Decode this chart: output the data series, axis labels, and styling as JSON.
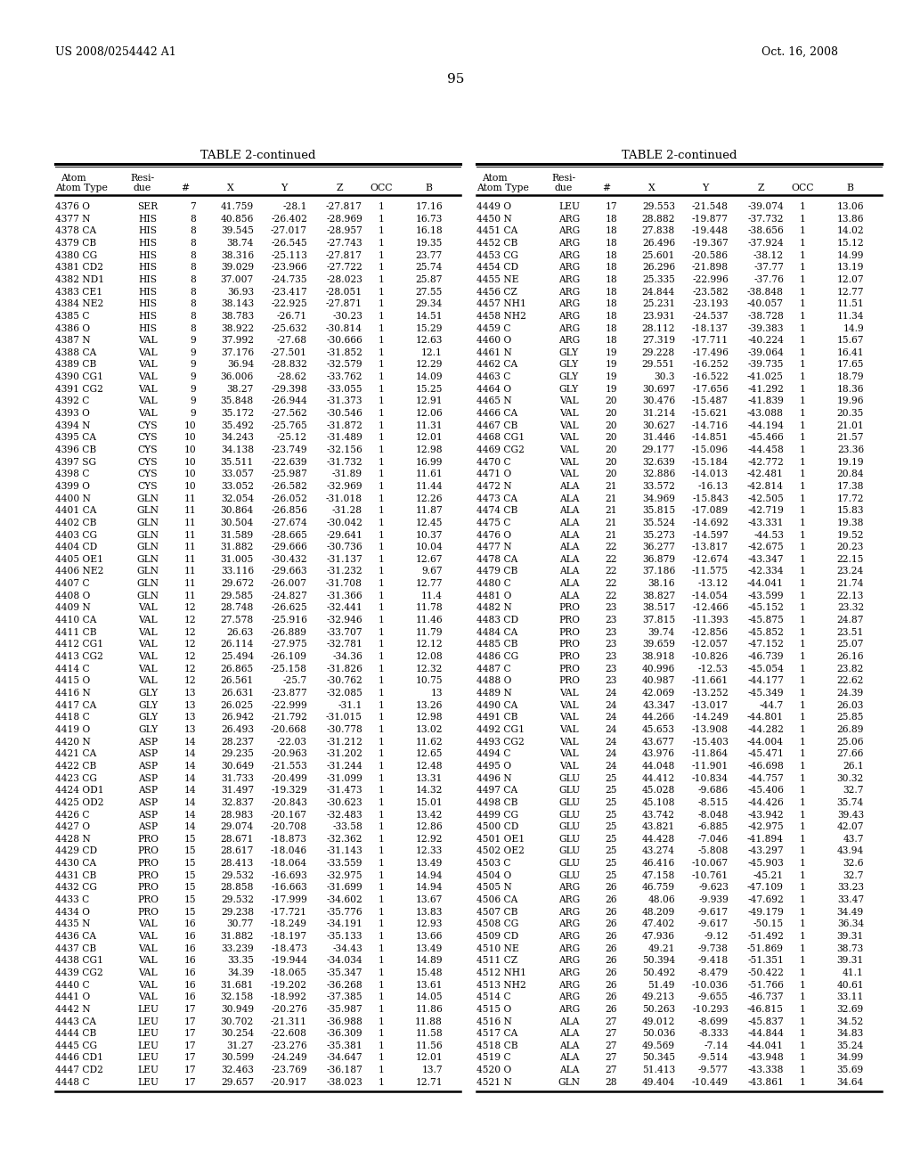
{
  "patent_number": "US 2008/0254442 A1",
  "date": "Oct. 16, 2008",
  "page_number": "95",
  "table_title": "TABLE 2-continued",
  "left_table_data": [
    [
      "4376 O",
      "SER",
      "7",
      "41.759",
      "-28.1",
      "-27.817",
      "1",
      "17.16"
    ],
    [
      "4377 N",
      "HIS",
      "8",
      "40.856",
      "-26.402",
      "-28.969",
      "1",
      "16.73"
    ],
    [
      "4378 CA",
      "HIS",
      "8",
      "39.545",
      "-27.017",
      "-28.957",
      "1",
      "16.18"
    ],
    [
      "4379 CB",
      "HIS",
      "8",
      "38.74",
      "-26.545",
      "-27.743",
      "1",
      "19.35"
    ],
    [
      "4380 CG",
      "HIS",
      "8",
      "38.316",
      "-25.113",
      "-27.817",
      "1",
      "23.77"
    ],
    [
      "4381 CD2",
      "HIS",
      "8",
      "39.029",
      "-23.966",
      "-27.722",
      "1",
      "25.74"
    ],
    [
      "4382 ND1",
      "HIS",
      "8",
      "37.007",
      "-24.735",
      "-28.023",
      "1",
      "25.87"
    ],
    [
      "4383 CE1",
      "HIS",
      "8",
      "36.93",
      "-23.417",
      "-28.051",
      "1",
      "27.55"
    ],
    [
      "4384 NE2",
      "HIS",
      "8",
      "38.143",
      "-22.925",
      "-27.871",
      "1",
      "29.34"
    ],
    [
      "4385 C",
      "HIS",
      "8",
      "38.783",
      "-26.71",
      "-30.23",
      "1",
      "14.51"
    ],
    [
      "4386 O",
      "HIS",
      "8",
      "38.922",
      "-25.632",
      "-30.814",
      "1",
      "15.29"
    ],
    [
      "4387 N",
      "VAL",
      "9",
      "37.992",
      "-27.68",
      "-30.666",
      "1",
      "12.63"
    ],
    [
      "4388 CA",
      "VAL",
      "9",
      "37.176",
      "-27.501",
      "-31.852",
      "1",
      "12.1"
    ],
    [
      "4389 CB",
      "VAL",
      "9",
      "36.94",
      "-28.832",
      "-32.579",
      "1",
      "12.29"
    ],
    [
      "4390 CG1",
      "VAL",
      "9",
      "36.006",
      "-28.62",
      "-33.762",
      "1",
      "14.09"
    ],
    [
      "4391 CG2",
      "VAL",
      "9",
      "38.27",
      "-29.398",
      "-33.055",
      "1",
      "15.25"
    ],
    [
      "4392 C",
      "VAL",
      "9",
      "35.848",
      "-26.944",
      "-31.373",
      "1",
      "12.91"
    ],
    [
      "4393 O",
      "VAL",
      "9",
      "35.172",
      "-27.562",
      "-30.546",
      "1",
      "12.06"
    ],
    [
      "4394 N",
      "CYS",
      "10",
      "35.492",
      "-25.765",
      "-31.872",
      "1",
      "11.31"
    ],
    [
      "4395 CA",
      "CYS",
      "10",
      "34.243",
      "-25.12",
      "-31.489",
      "1",
      "12.01"
    ],
    [
      "4396 CB",
      "CYS",
      "10",
      "34.138",
      "-23.749",
      "-32.156",
      "1",
      "12.98"
    ],
    [
      "4397 SG",
      "CYS",
      "10",
      "35.511",
      "-22.639",
      "-31.732",
      "1",
      "16.99"
    ],
    [
      "4398 C",
      "CYS",
      "10",
      "33.057",
      "-25.987",
      "-31.89",
      "1",
      "11.61"
    ],
    [
      "4399 O",
      "CYS",
      "10",
      "33.052",
      "-26.582",
      "-32.969",
      "1",
      "11.44"
    ],
    [
      "4400 N",
      "GLN",
      "11",
      "32.054",
      "-26.052",
      "-31.018",
      "1",
      "12.26"
    ],
    [
      "4401 CA",
      "GLN",
      "11",
      "30.864",
      "-26.856",
      "-31.28",
      "1",
      "11.87"
    ],
    [
      "4402 CB",
      "GLN",
      "11",
      "30.504",
      "-27.674",
      "-30.042",
      "1",
      "12.45"
    ],
    [
      "4403 CG",
      "GLN",
      "11",
      "31.589",
      "-28.665",
      "-29.641",
      "1",
      "10.37"
    ],
    [
      "4404 CD",
      "GLN",
      "11",
      "31.882",
      "-29.666",
      "-30.736",
      "1",
      "10.04"
    ],
    [
      "4405 OE1",
      "GLN",
      "11",
      "31.005",
      "-30.432",
      "-31.137",
      "1",
      "12.67"
    ],
    [
      "4406 NE2",
      "GLN",
      "11",
      "33.116",
      "-29.663",
      "-31.232",
      "1",
      "9.67"
    ],
    [
      "4407 C",
      "GLN",
      "11",
      "29.672",
      "-26.007",
      "-31.708",
      "1",
      "12.77"
    ],
    [
      "4408 O",
      "GLN",
      "11",
      "29.585",
      "-24.827",
      "-31.366",
      "1",
      "11.4"
    ],
    [
      "4409 N",
      "VAL",
      "12",
      "28.748",
      "-26.625",
      "-32.441",
      "1",
      "11.78"
    ],
    [
      "4410 CA",
      "VAL",
      "12",
      "27.578",
      "-25.916",
      "-32.946",
      "1",
      "11.46"
    ],
    [
      "4411 CB",
      "VAL",
      "12",
      "26.63",
      "-26.889",
      "-33.707",
      "1",
      "11.79"
    ],
    [
      "4412 CG1",
      "VAL",
      "12",
      "26.114",
      "-27.975",
      "-32.781",
      "1",
      "12.12"
    ],
    [
      "4413 CG2",
      "VAL",
      "12",
      "25.494",
      "-26.109",
      "-34.36",
      "1",
      "12.08"
    ],
    [
      "4414 C",
      "VAL",
      "12",
      "26.865",
      "-25.158",
      "-31.826",
      "1",
      "12.32"
    ],
    [
      "4415 O",
      "VAL",
      "12",
      "26.561",
      "-25.7",
      "-30.762",
      "1",
      "10.75"
    ],
    [
      "4416 N",
      "GLY",
      "13",
      "26.631",
      "-23.877",
      "-32.085",
      "1",
      "13"
    ],
    [
      "4417 CA",
      "GLY",
      "13",
      "26.025",
      "-22.999",
      "-31.1",
      "1",
      "13.26"
    ],
    [
      "4418 C",
      "GLY",
      "13",
      "26.942",
      "-21.792",
      "-31.015",
      "1",
      "12.98"
    ],
    [
      "4419 O",
      "GLY",
      "13",
      "26.493",
      "-20.668",
      "-30.778",
      "1",
      "13.02"
    ],
    [
      "4420 N",
      "ASP",
      "14",
      "28.237",
      "-22.03",
      "-31.212",
      "1",
      "11.62"
    ],
    [
      "4421 CA",
      "ASP",
      "14",
      "29.235",
      "-20.963",
      "-31.202",
      "1",
      "12.65"
    ],
    [
      "4422 CB",
      "ASP",
      "14",
      "30.649",
      "-21.553",
      "-31.244",
      "1",
      "12.48"
    ],
    [
      "4423 CG",
      "ASP",
      "14",
      "31.733",
      "-20.499",
      "-31.099",
      "1",
      "13.31"
    ],
    [
      "4424 OD1",
      "ASP",
      "14",
      "31.497",
      "-19.329",
      "-31.473",
      "1",
      "14.32"
    ],
    [
      "4425 OD2",
      "ASP",
      "14",
      "32.837",
      "-20.843",
      "-30.623",
      "1",
      "15.01"
    ],
    [
      "4426 C",
      "ASP",
      "14",
      "28.983",
      "-20.167",
      "-32.483",
      "1",
      "13.42"
    ],
    [
      "4427 O",
      "ASP",
      "14",
      "29.074",
      "-20.708",
      "-33.58",
      "1",
      "12.86"
    ],
    [
      "4428 N",
      "PRO",
      "15",
      "28.671",
      "-18.873",
      "-32.362",
      "1",
      "12.92"
    ],
    [
      "4429 CD",
      "PRO",
      "15",
      "28.617",
      "-18.046",
      "-31.143",
      "1",
      "12.33"
    ],
    [
      "4430 CA",
      "PRO",
      "15",
      "28.413",
      "-18.064",
      "-33.559",
      "1",
      "13.49"
    ],
    [
      "4431 CB",
      "PRO",
      "15",
      "29.532",
      "-16.693",
      "-32.975",
      "1",
      "14.94"
    ],
    [
      "4432 CG",
      "PRO",
      "15",
      "28.858",
      "-16.663",
      "-31.699",
      "1",
      "14.94"
    ],
    [
      "4433 C",
      "PRO",
      "15",
      "29.532",
      "-17.999",
      "-34.602",
      "1",
      "13.67"
    ],
    [
      "4434 O",
      "PRO",
      "15",
      "29.238",
      "-17.721",
      "-35.776",
      "1",
      "13.83"
    ],
    [
      "4435 N",
      "VAL",
      "16",
      "30.77",
      "-18.249",
      "-34.191",
      "1",
      "12.93"
    ],
    [
      "4436 CA",
      "VAL",
      "16",
      "31.882",
      "-18.197",
      "-35.133",
      "1",
      "13.66"
    ],
    [
      "4437 CB",
      "VAL",
      "16",
      "33.239",
      "-18.473",
      "-34.43",
      "1",
      "13.49"
    ],
    [
      "4438 CG1",
      "VAL",
      "16",
      "33.35",
      "-19.944",
      "-34.034",
      "1",
      "14.89"
    ],
    [
      "4439 CG2",
      "VAL",
      "16",
      "34.39",
      "-18.065",
      "-35.347",
      "1",
      "15.48"
    ],
    [
      "4440 C",
      "VAL",
      "16",
      "31.681",
      "-19.202",
      "-36.268",
      "1",
      "13.61"
    ],
    [
      "4441 O",
      "VAL",
      "16",
      "32.158",
      "-18.992",
      "-37.385",
      "1",
      "14.05"
    ],
    [
      "4442 N",
      "LEU",
      "17",
      "30.949",
      "-20.276",
      "-35.987",
      "1",
      "11.86"
    ],
    [
      "4443 CA",
      "LEU",
      "17",
      "30.702",
      "-21.311",
      "-36.988",
      "1",
      "11.88"
    ],
    [
      "4444 CB",
      "LEU",
      "17",
      "30.254",
      "-22.608",
      "-36.309",
      "1",
      "11.58"
    ],
    [
      "4445 CG",
      "LEU",
      "17",
      "31.27",
      "-23.276",
      "-35.381",
      "1",
      "11.56"
    ],
    [
      "4446 CD1",
      "LEU",
      "17",
      "30.599",
      "-24.249",
      "-34.647",
      "1",
      "12.01"
    ],
    [
      "4447 CD2",
      "LEU",
      "17",
      "32.463",
      "-23.769",
      "-36.187",
      "1",
      "13.7"
    ],
    [
      "4448 C",
      "LEU",
      "17",
      "29.657",
      "-20.917",
      "-38.023",
      "1",
      "12.71"
    ]
  ],
  "right_table_data": [
    [
      "4449 O",
      "LEU",
      "17",
      "29.553",
      "-21.548",
      "-39.074",
      "1",
      "13.06"
    ],
    [
      "4450 N",
      "ARG",
      "18",
      "28.882",
      "-19.877",
      "-37.732",
      "1",
      "13.86"
    ],
    [
      "4451 CA",
      "ARG",
      "18",
      "27.838",
      "-19.448",
      "-38.656",
      "1",
      "14.02"
    ],
    [
      "4452 CB",
      "ARG",
      "18",
      "26.496",
      "-19.367",
      "-37.924",
      "1",
      "15.12"
    ],
    [
      "4453 CG",
      "ARG",
      "18",
      "25.601",
      "-20.586",
      "-38.12",
      "1",
      "14.99"
    ],
    [
      "4454 CD",
      "ARG",
      "18",
      "26.296",
      "-21.898",
      "-37.77",
      "1",
      "13.19"
    ],
    [
      "4455 NE",
      "ARG",
      "18",
      "25.335",
      "-22.996",
      "-37.76",
      "1",
      "12.07"
    ],
    [
      "4456 CZ",
      "ARG",
      "18",
      "24.844",
      "-23.582",
      "-38.848",
      "1",
      "12.77"
    ],
    [
      "4457 NH1",
      "ARG",
      "18",
      "25.231",
      "-23.193",
      "-40.057",
      "1",
      "11.51"
    ],
    [
      "4458 NH2",
      "ARG",
      "18",
      "23.931",
      "-24.537",
      "-38.728",
      "1",
      "11.34"
    ],
    [
      "4459 C",
      "ARG",
      "18",
      "28.112",
      "-18.137",
      "-39.383",
      "1",
      "14.9"
    ],
    [
      "4460 O",
      "ARG",
      "18",
      "27.319",
      "-17.711",
      "-40.224",
      "1",
      "15.67"
    ],
    [
      "4461 N",
      "GLY",
      "19",
      "29.228",
      "-17.496",
      "-39.064",
      "1",
      "16.41"
    ],
    [
      "4462 CA",
      "GLY",
      "19",
      "29.551",
      "-16.252",
      "-39.735",
      "1",
      "17.65"
    ],
    [
      "4463 C",
      "GLY",
      "19",
      "30.3",
      "-16.522",
      "-41.025",
      "1",
      "18.79"
    ],
    [
      "4464 O",
      "GLY",
      "19",
      "30.697",
      "-17.656",
      "-41.292",
      "1",
      "18.36"
    ],
    [
      "4465 N",
      "VAL",
      "20",
      "30.476",
      "-15.487",
      "-41.839",
      "1",
      "19.96"
    ],
    [
      "4466 CA",
      "VAL",
      "20",
      "31.214",
      "-15.621",
      "-43.088",
      "1",
      "20.35"
    ],
    [
      "4467 CB",
      "VAL",
      "20",
      "30.627",
      "-14.716",
      "-44.194",
      "1",
      "21.01"
    ],
    [
      "4468 CG1",
      "VAL",
      "20",
      "31.446",
      "-14.851",
      "-45.466",
      "1",
      "21.57"
    ],
    [
      "4469 CG2",
      "VAL",
      "20",
      "29.177",
      "-15.096",
      "-44.458",
      "1",
      "23.36"
    ],
    [
      "4470 C",
      "VAL",
      "20",
      "32.639",
      "-15.184",
      "-42.772",
      "1",
      "19.19"
    ],
    [
      "4471 O",
      "VAL",
      "20",
      "32.886",
      "-14.013",
      "-42.481",
      "1",
      "20.84"
    ],
    [
      "4472 N",
      "ALA",
      "21",
      "33.572",
      "-16.13",
      "-42.814",
      "1",
      "17.38"
    ],
    [
      "4473 CA",
      "ALA",
      "21",
      "34.969",
      "-15.843",
      "-42.505",
      "1",
      "17.72"
    ],
    [
      "4474 CB",
      "ALA",
      "21",
      "35.815",
      "-17.089",
      "-42.719",
      "1",
      "15.83"
    ],
    [
      "4475 C",
      "ALA",
      "21",
      "35.524",
      "-14.692",
      "-43.331",
      "1",
      "19.38"
    ],
    [
      "4476 O",
      "ALA",
      "21",
      "35.273",
      "-14.597",
      "-44.53",
      "1",
      "19.52"
    ],
    [
      "4477 N",
      "ALA",
      "22",
      "36.277",
      "-13.817",
      "-42.675",
      "1",
      "20.23"
    ],
    [
      "4478 CA",
      "ALA",
      "22",
      "36.879",
      "-12.674",
      "-43.347",
      "1",
      "22.15"
    ],
    [
      "4479 CB",
      "ALA",
      "22",
      "37.186",
      "-11.575",
      "-42.334",
      "1",
      "23.24"
    ],
    [
      "4480 C",
      "ALA",
      "22",
      "38.16",
      "-13.12",
      "-44.041",
      "1",
      "21.74"
    ],
    [
      "4481 O",
      "ALA",
      "22",
      "38.827",
      "-14.054",
      "-43.599",
      "1",
      "22.13"
    ],
    [
      "4482 N",
      "PRO",
      "23",
      "38.517",
      "-12.466",
      "-45.152",
      "1",
      "23.32"
    ],
    [
      "4483 CD",
      "PRO",
      "23",
      "37.815",
      "-11.393",
      "-45.875",
      "1",
      "24.87"
    ],
    [
      "4484 CA",
      "PRO",
      "23",
      "39.74",
      "-12.856",
      "-45.852",
      "1",
      "23.51"
    ],
    [
      "4485 CB",
      "PRO",
      "23",
      "39.659",
      "-12.057",
      "-47.152",
      "1",
      "25.07"
    ],
    [
      "4486 CG",
      "PRO",
      "23",
      "38.918",
      "-10.826",
      "-46.739",
      "1",
      "26.16"
    ],
    [
      "4487 C",
      "PRO",
      "23",
      "40.996",
      "-12.53",
      "-45.054",
      "1",
      "23.82"
    ],
    [
      "4488 O",
      "PRO",
      "23",
      "40.987",
      "-11.661",
      "-44.177",
      "1",
      "22.62"
    ],
    [
      "4489 N",
      "VAL",
      "24",
      "42.069",
      "-13.252",
      "-45.349",
      "1",
      "24.39"
    ],
    [
      "4490 CA",
      "VAL",
      "24",
      "43.347",
      "-13.017",
      "-44.7",
      "1",
      "26.03"
    ],
    [
      "4491 CB",
      "VAL",
      "24",
      "44.266",
      "-14.249",
      "-44.801",
      "1",
      "25.85"
    ],
    [
      "4492 CG1",
      "VAL",
      "24",
      "45.653",
      "-13.908",
      "-44.282",
      "1",
      "26.89"
    ],
    [
      "4493 CG2",
      "VAL",
      "24",
      "43.677",
      "-15.403",
      "-44.004",
      "1",
      "25.06"
    ],
    [
      "4494 C",
      "VAL",
      "24",
      "43.976",
      "-11.864",
      "-45.471",
      "1",
      "27.66"
    ],
    [
      "4495 O",
      "VAL",
      "24",
      "44.048",
      "-11.901",
      "-46.698",
      "1",
      "26.1"
    ],
    [
      "4496 N",
      "GLU",
      "25",
      "44.412",
      "-10.834",
      "-44.757",
      "1",
      "30.32"
    ],
    [
      "4497 CA",
      "GLU",
      "25",
      "45.028",
      "-9.686",
      "-45.406",
      "1",
      "32.7"
    ],
    [
      "4498 CB",
      "GLU",
      "25",
      "45.108",
      "-8.515",
      "-44.426",
      "1",
      "35.74"
    ],
    [
      "4499 CG",
      "GLU",
      "25",
      "43.742",
      "-8.048",
      "-43.942",
      "1",
      "39.43"
    ],
    [
      "4500 CD",
      "GLU",
      "25",
      "43.821",
      "-6.885",
      "-42.975",
      "1",
      "42.07"
    ],
    [
      "4501 OE1",
      "GLU",
      "25",
      "44.428",
      "-7.046",
      "-41.894",
      "1",
      "43.7"
    ],
    [
      "4502 OE2",
      "GLU",
      "25",
      "43.274",
      "-5.808",
      "-43.297",
      "1",
      "43.94"
    ],
    [
      "4503 C",
      "GLU",
      "25",
      "46.416",
      "-10.067",
      "-45.903",
      "1",
      "32.6"
    ],
    [
      "4504 O",
      "GLU",
      "25",
      "47.158",
      "-10.761",
      "-45.21",
      "1",
      "32.7"
    ],
    [
      "4505 N",
      "ARG",
      "26",
      "46.759",
      "-9.623",
      "-47.109",
      "1",
      "33.23"
    ],
    [
      "4506 CA",
      "ARG",
      "26",
      "48.06",
      "-9.939",
      "-47.692",
      "1",
      "33.47"
    ],
    [
      "4507 CB",
      "ARG",
      "26",
      "48.209",
      "-9.617",
      "-49.179",
      "1",
      "34.49"
    ],
    [
      "4508 CG",
      "ARG",
      "26",
      "47.402",
      "-9.617",
      "-50.15",
      "1",
      "36.34"
    ],
    [
      "4509 CD",
      "ARG",
      "26",
      "47.936",
      "-9.12",
      "-51.492",
      "1",
      "39.31"
    ],
    [
      "4510 NE",
      "ARG",
      "26",
      "49.21",
      "-9.738",
      "-51.869",
      "1",
      "38.73"
    ],
    [
      "4511 CZ",
      "ARG",
      "26",
      "50.394",
      "-9.418",
      "-51.351",
      "1",
      "39.31"
    ],
    [
      "4512 NH1",
      "ARG",
      "26",
      "50.492",
      "-8.479",
      "-50.422",
      "1",
      "41.1"
    ],
    [
      "4513 NH2",
      "ARG",
      "26",
      "51.49",
      "-10.036",
      "-51.766",
      "1",
      "40.61"
    ],
    [
      "4514 C",
      "ARG",
      "26",
      "49.213",
      "-9.655",
      "-46.737",
      "1",
      "33.11"
    ],
    [
      "4515 O",
      "ARG",
      "26",
      "50.263",
      "-10.293",
      "-46.815",
      "1",
      "32.69"
    ],
    [
      "4516 N",
      "ALA",
      "27",
      "49.012",
      "-8.699",
      "-45.837",
      "1",
      "34.52"
    ],
    [
      "4517 CA",
      "ALA",
      "27",
      "50.036",
      "-8.333",
      "-44.844",
      "1",
      "34.83"
    ],
    [
      "4518 CB",
      "ALA",
      "27",
      "49.569",
      "-7.14",
      "-44.041",
      "1",
      "35.24"
    ],
    [
      "4519 C",
      "ALA",
      "27",
      "50.345",
      "-9.514",
      "-43.948",
      "1",
      "34.99"
    ],
    [
      "4520 O",
      "ALA",
      "27",
      "51.413",
      "-9.577",
      "-43.338",
      "1",
      "35.69"
    ],
    [
      "4521 N",
      "GLN",
      "28",
      "49.404",
      "-10.449",
      "-43.861",
      "1",
      "34.64"
    ]
  ]
}
